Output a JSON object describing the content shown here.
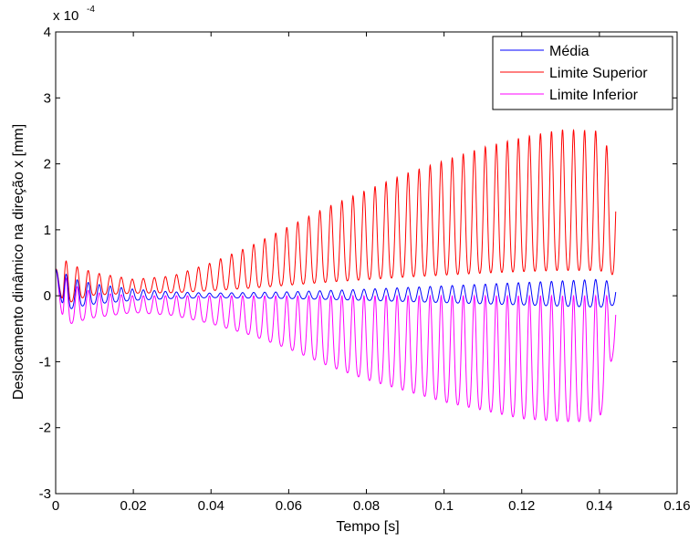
{
  "chart_data": {
    "type": "line",
    "xlabel": "Tempo [s]",
    "ylabel": "Deslocamento dinâmico na direção x [mm]",
    "y_scale_label": {
      "base": "x 10",
      "exponent": "-4"
    },
    "xlim": [
      0,
      0.16
    ],
    "ylim": [
      -3,
      4
    ],
    "x_ticks": [
      0,
      0.02,
      0.04,
      0.06,
      0.08,
      0.1,
      0.12,
      0.14,
      0.16
    ],
    "x_tick_labels": [
      "0",
      "0.02",
      "0.04",
      "0.06",
      "0.08",
      "0.1",
      "0.12",
      "0.14",
      "0.16"
    ],
    "y_ticks": [
      -3,
      -2,
      -1,
      0,
      1,
      2,
      3,
      4
    ],
    "y_tick_labels": [
      "-3",
      "-2",
      "-1",
      "0",
      "1",
      "2",
      "3",
      "4"
    ],
    "grid": false,
    "legend_position": "top-right",
    "signal": {
      "t_end": 0.1442,
      "oscillation_period": 0.00284,
      "note_units": "displacement values in units of 1e-4 mm"
    },
    "series": [
      {
        "name": "Média",
        "color": "#0000ff",
        "envelope_t": [
          0,
          0.002,
          0.005,
          0.01,
          0.02,
          0.03,
          0.04,
          0.06,
          0.08,
          0.1,
          0.12,
          0.14,
          0.1442
        ],
        "envelope_upper": [
          0.4,
          0.35,
          0.25,
          0.18,
          0.1,
          0.06,
          0.04,
          0.06,
          0.1,
          0.15,
          0.2,
          0.25,
          0.2
        ],
        "envelope_lower": [
          0.4,
          -0.35,
          -0.25,
          -0.18,
          -0.1,
          -0.06,
          -0.04,
          -0.06,
          -0.1,
          -0.15,
          -0.2,
          -0.25,
          -0.2
        ]
      },
      {
        "name": "Limite Superior",
        "color": "#ff0000",
        "envelope_t": [
          0,
          0.002,
          0.005,
          0.01,
          0.02,
          0.03,
          0.04,
          0.05,
          0.06,
          0.07,
          0.08,
          0.09,
          0.1,
          0.11,
          0.12,
          0.13,
          0.14,
          0.1442
        ],
        "envelope_upper": [
          0.4,
          0.55,
          0.45,
          0.35,
          0.25,
          0.3,
          0.5,
          0.75,
          1.05,
          1.35,
          1.6,
          1.85,
          2.05,
          2.25,
          2.4,
          2.52,
          2.5,
          2.0
        ],
        "envelope_lower": [
          0.4,
          -0.3,
          -0.15,
          -0.05,
          0.0,
          0.0,
          0.0,
          0.0,
          0.0,
          0.0,
          0.0,
          0.0,
          0.0,
          0.0,
          0.0,
          0.0,
          0.0,
          0.0
        ]
      },
      {
        "name": "Limite Inferior",
        "color": "#ff00ff",
        "envelope_t": [
          0,
          0.002,
          0.005,
          0.01,
          0.02,
          0.03,
          0.04,
          0.05,
          0.06,
          0.07,
          0.08,
          0.09,
          0.1,
          0.11,
          0.12,
          0.13,
          0.14,
          0.1442
        ],
        "envelope_upper": [
          0.4,
          0.3,
          0.15,
          0.05,
          0.0,
          0.0,
          0.0,
          0.0,
          0.0,
          0.0,
          0.0,
          0.0,
          0.0,
          0.0,
          0.0,
          0.0,
          0.0,
          0.0
        ],
        "envelope_lower": [
          0.4,
          -0.6,
          -0.5,
          -0.4,
          -0.3,
          -0.35,
          -0.5,
          -0.7,
          -0.95,
          -1.25,
          -1.5,
          -1.7,
          -1.9,
          -2.05,
          -2.2,
          -2.25,
          -2.25,
          -0.8
        ]
      }
    ]
  }
}
